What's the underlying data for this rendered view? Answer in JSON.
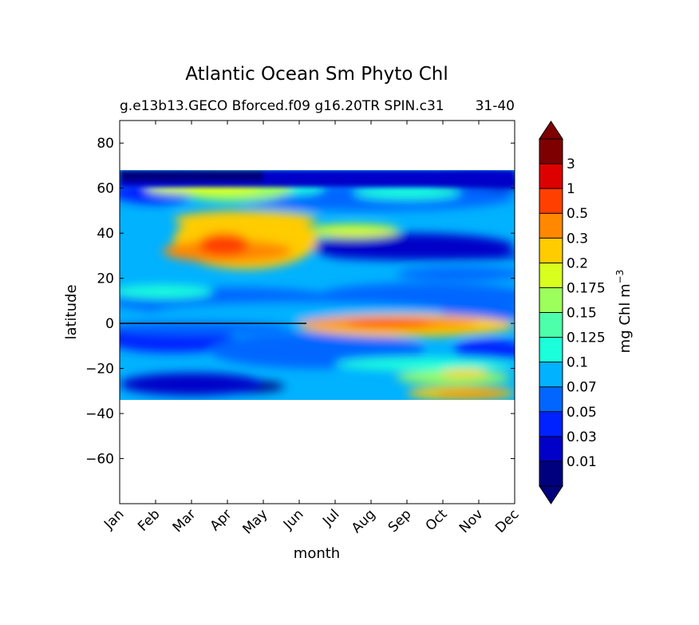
{
  "chart_data": {
    "type": "heatmap",
    "title": "Atlantic Ocean Sm Phyto Chl",
    "subtitle_left": "g.e13b13.GECO Bforced.f09 g16.20TR SPIN.c31",
    "subtitle_right": "31-40",
    "xlabel": "month",
    "ylabel": "latitude",
    "x_ticks": [
      "Jan",
      "Feb",
      "Mar",
      "Apr",
      "May",
      "Jun",
      "Jul",
      "Aug",
      "Sep",
      "Oct",
      "Nov",
      "Dec"
    ],
    "xlim": [
      0,
      11
    ],
    "ylim": [
      -80,
      90
    ],
    "y_ticks": [
      80,
      60,
      40,
      20,
      0,
      -20,
      -40,
      -60
    ],
    "y_tick_labels": [
      "80",
      "60",
      "40",
      "20",
      "0",
      "−20",
      "−40",
      "−60"
    ],
    "data_lat_range": [
      -34,
      68
    ],
    "colorbar": {
      "label": "mg Chl m",
      "label_exp": "−3",
      "levels": [
        "0.01",
        "0.03",
        "0.05",
        "0.07",
        "0.1",
        "0.125",
        "0.15",
        "0.175",
        "0.2",
        "0.3",
        "0.5",
        "1",
        "3"
      ],
      "colors": [
        "#00007f",
        "#0000c8",
        "#0022ff",
        "#0066ff",
        "#00b2ff",
        "#1bffdb",
        "#4dffaa",
        "#9cff5c",
        "#d8ff1e",
        "#ffcc00",
        "#ff8800",
        "#ff3f00",
        "#dd0000",
        "#7f0000"
      ],
      "extend": "both"
    },
    "features": [
      {
        "name": "north-boundary",
        "month": [
          0,
          11
        ],
        "lat": [
          62,
          68
        ],
        "level": 0
      },
      {
        "name": "subpolar-spring-bloom",
        "month": [
          1.6,
          4.8
        ],
        "lat": [
          54,
          66
        ],
        "level": 7
      },
      {
        "name": "mid-lat-spring-bloom",
        "month": [
          1.5,
          5.5
        ],
        "lat": [
          24,
          50
        ],
        "level": 9
      },
      {
        "name": "mid-lat-spring-core",
        "month": [
          2.2,
          3.6
        ],
        "lat": [
          30,
          40
        ],
        "level": 11
      },
      {
        "name": "subtropical-gyre-north",
        "month": [
          5.2,
          11
        ],
        "lat": [
          28,
          40
        ],
        "level": 1
      },
      {
        "name": "equatorial-upwelling",
        "month": [
          5,
          11
        ],
        "lat": [
          -6,
          4
        ],
        "level": 9
      },
      {
        "name": "equatorial-upwelling-core",
        "month": [
          6.3,
          8.7
        ],
        "lat": [
          -2,
          2
        ],
        "level": 11
      },
      {
        "name": "south-gyre",
        "month": [
          0,
          4
        ],
        "lat": [
          -32,
          -22
        ],
        "level": 1
      },
      {
        "name": "southern-summer-bloom",
        "month": [
          8,
          11
        ],
        "lat": [
          -34,
          -28
        ],
        "level": 9
      }
    ]
  }
}
